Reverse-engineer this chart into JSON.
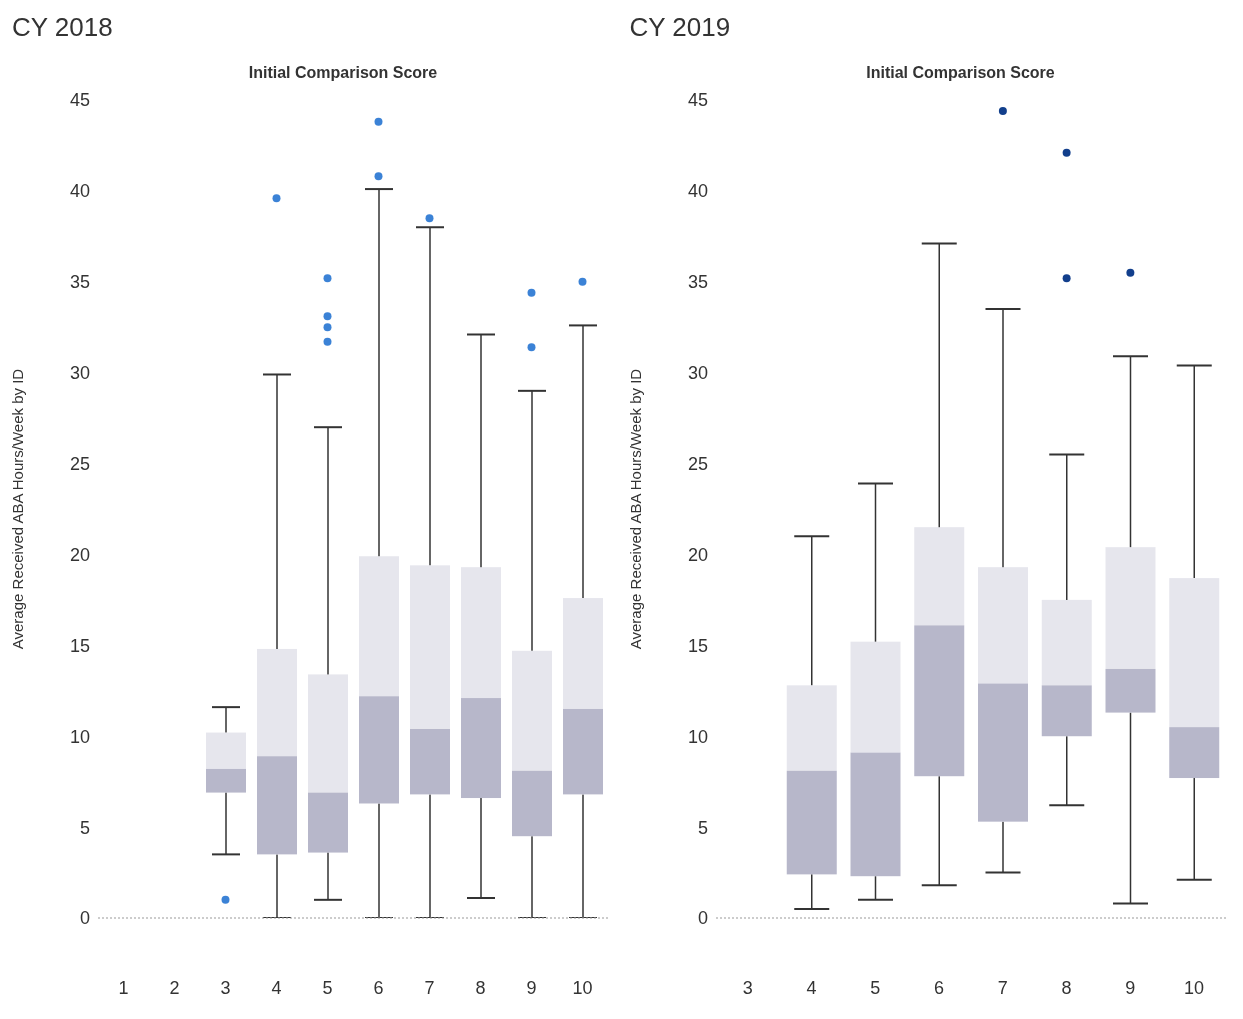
{
  "chart_data": [
    {
      "type": "box",
      "title": "CY 2018",
      "subtitle": "Initial Comparison Score",
      "ylabel": "Average Received ABA Hours/Week by ID",
      "categories": [
        "1",
        "2",
        "3",
        "4",
        "5",
        "6",
        "7",
        "8",
        "9",
        "10"
      ],
      "color": "#b7b7ca",
      "ylim": [
        0,
        45
      ],
      "yticks": [
        0,
        5,
        10,
        15,
        20,
        25,
        30,
        35,
        40,
        45
      ],
      "grid": false,
      "legend": false,
      "boxes": [
        null,
        null,
        {
          "low": 3.5,
          "q1": 6.9,
          "median": 8.2,
          "q3": 10.2,
          "high": 11.6
        },
        {
          "low": 0,
          "q1": 3.5,
          "median": 8.9,
          "q3": 14.8,
          "high": 29.9
        },
        {
          "low": 1,
          "q1": 3.6,
          "median": 6.9,
          "q3": 13.4,
          "high": 27
        },
        {
          "low": 0,
          "q1": 6.3,
          "median": 12.2,
          "q3": 19.9,
          "high": 40.1
        },
        {
          "low": 0,
          "q1": 6.8,
          "median": 10.4,
          "q3": 19.4,
          "high": 38
        },
        {
          "low": 1.1,
          "q1": 6.6,
          "median": 12.1,
          "q3": 19.3,
          "high": 32.1
        },
        {
          "low": 0,
          "q1": 4.5,
          "median": 8.1,
          "q3": 14.7,
          "high": 29
        },
        {
          "low": 0,
          "q1": 6.8,
          "median": 11.5,
          "q3": 17.6,
          "high": 32.6
        }
      ],
      "series": [
        {
          "type": "scatter",
          "color": "#3b82d6",
          "marker": "circle",
          "x": [
            "3",
            "4",
            "5",
            "5",
            "5",
            "5",
            "6",
            "6",
            "7",
            "9",
            "9",
            "10"
          ],
          "values": [
            1,
            39.6,
            35.2,
            33.1,
            32.5,
            31.7,
            43.8,
            40.8,
            38.5,
            34.4,
            31.4,
            35
          ]
        }
      ]
    },
    {
      "type": "box",
      "title": "CY 2019",
      "subtitle": "Initial Comparison Score",
      "ylabel": "Average Received ABA Hours/Week by ID",
      "categories": [
        "3",
        "4",
        "5",
        "6",
        "7",
        "8",
        "9",
        "10"
      ],
      "color": "#b7b7ca",
      "ylim": [
        0,
        45
      ],
      "yticks": [
        0,
        5,
        10,
        15,
        20,
        25,
        30,
        35,
        40,
        45
      ],
      "grid": false,
      "legend": false,
      "boxes": [
        null,
        {
          "low": 0.5,
          "q1": 2.4,
          "median": 8.1,
          "q3": 12.8,
          "high": 21
        },
        {
          "low": 1,
          "q1": 2.3,
          "median": 9.1,
          "q3": 15.2,
          "high": 23.9
        },
        {
          "low": 1.8,
          "q1": 7.8,
          "median": 16.1,
          "q3": 21.5,
          "high": 37.1
        },
        {
          "low": 2.5,
          "q1": 5.3,
          "median": 12.9,
          "q3": 19.3,
          "high": 33.5
        },
        {
          "low": 6.2,
          "q1": 10,
          "median": 12.8,
          "q3": 17.5,
          "high": 25.5
        },
        {
          "low": 0.8,
          "q1": 11.3,
          "median": 13.7,
          "q3": 20.4,
          "high": 30.9
        },
        {
          "low": 2.1,
          "q1": 7.7,
          "median": 10.5,
          "q3": 18.7,
          "high": 30.4
        }
      ],
      "series": [
        {
          "type": "scatter",
          "color": "#123f8c",
          "marker": "circle",
          "x": [
            "7",
            "8",
            "8",
            "9"
          ],
          "values": [
            44.4,
            42.1,
            35.2,
            35.5
          ]
        }
      ]
    }
  ]
}
